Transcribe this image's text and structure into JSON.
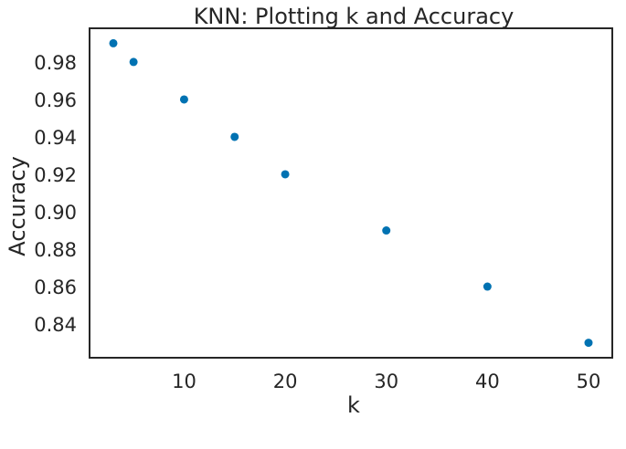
{
  "chart_data": {
    "type": "scatter",
    "title": "KNN: Plotting k and Accuracy",
    "xlabel": "k",
    "ylabel": "Accuracy",
    "x": [
      3,
      5,
      10,
      15,
      20,
      30,
      40,
      50
    ],
    "y": [
      0.99,
      0.98,
      0.96,
      0.94,
      0.92,
      0.89,
      0.86,
      0.83
    ],
    "xlim": [
      0.65,
      52.35
    ],
    "ylim": [
      0.822,
      0.998
    ],
    "xticks": [
      10,
      20,
      30,
      40,
      50
    ],
    "xtick_labels": [
      "10",
      "20",
      "30",
      "40",
      "50"
    ],
    "yticks": [
      0.84,
      0.86,
      0.88,
      0.9,
      0.92,
      0.94,
      0.96,
      0.98
    ],
    "ytick_labels": [
      "0.84",
      "0.86",
      "0.88",
      "0.90",
      "0.92",
      "0.94",
      "0.96",
      "0.98"
    ],
    "grid": false,
    "marker_color": "#0072b2",
    "axes_color": "#262626"
  }
}
